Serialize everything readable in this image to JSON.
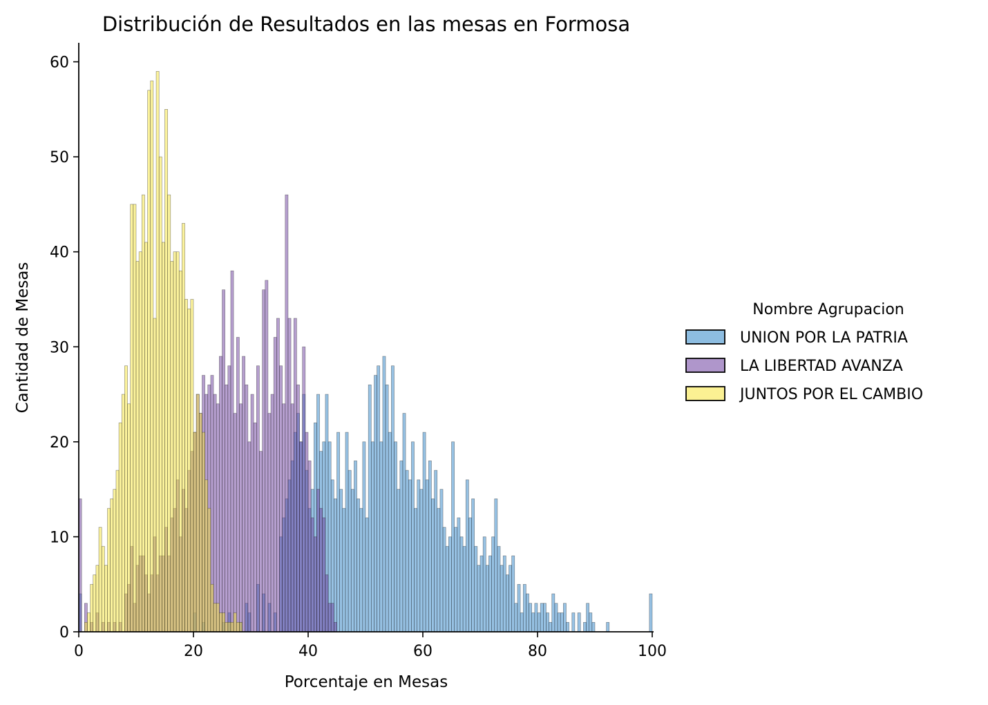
{
  "chart_data": {
    "type": "histogram",
    "title": "Distribución de Resultados en las mesas en Formosa",
    "xlabel": "Porcentaje en Mesas",
    "ylabel": "Cantidad de Mesas",
    "xlim": [
      0,
      100
    ],
    "ylim": [
      0,
      62
    ],
    "xticks": [
      0,
      20,
      40,
      60,
      80,
      100
    ],
    "yticks": [
      0,
      10,
      20,
      30,
      40,
      50,
      60
    ],
    "bin_width": 0.5,
    "grid": false,
    "legend": {
      "title": "Nombre Agrupacion",
      "placement": "right, outside plot",
      "entries": [
        "UNION POR LA PATRIA",
        "LA LIBERTAD AVANZA",
        "JUNTOS POR EL CAMBIO"
      ]
    },
    "colors": {
      "UNION POR LA PATRIA": "#2f86c9",
      "LA LIBERTAD AVANZA": "#6e3fa0",
      "JUNTOS POR EL CAMBIO": "#f7e53a"
    },
    "series": [
      {
        "name": "UNION POR LA PATRIA",
        "points": [
          [
            0.25,
            4
          ],
          [
            20.25,
            2
          ],
          [
            21.75,
            1
          ],
          [
            25.25,
            1
          ],
          [
            26.25,
            2
          ],
          [
            28.25,
            1
          ],
          [
            29.25,
            3
          ],
          [
            29.75,
            2
          ],
          [
            31.25,
            5
          ],
          [
            32.25,
            4
          ],
          [
            33.25,
            3
          ],
          [
            34.25,
            2
          ],
          [
            35.25,
            10
          ],
          [
            35.75,
            12
          ],
          [
            36.25,
            14
          ],
          [
            36.75,
            16
          ],
          [
            37.25,
            18
          ],
          [
            37.75,
            21
          ],
          [
            38.25,
            23
          ],
          [
            38.75,
            20
          ],
          [
            39.25,
            25
          ],
          [
            39.75,
            17
          ],
          [
            40.25,
            13
          ],
          [
            40.75,
            15
          ],
          [
            41.25,
            22
          ],
          [
            41.75,
            25
          ],
          [
            42.25,
            19
          ],
          [
            42.75,
            20
          ],
          [
            43.25,
            25
          ],
          [
            43.75,
            20
          ],
          [
            44.25,
            16
          ],
          [
            44.75,
            14
          ],
          [
            45.25,
            21
          ],
          [
            45.75,
            15
          ],
          [
            46.25,
            13
          ],
          [
            46.75,
            21
          ],
          [
            47.25,
            17
          ],
          [
            47.75,
            15
          ],
          [
            48.25,
            18
          ],
          [
            48.75,
            14
          ],
          [
            49.25,
            13
          ],
          [
            49.75,
            20
          ],
          [
            50.25,
            12
          ],
          [
            50.75,
            26
          ],
          [
            51.25,
            20
          ],
          [
            51.75,
            27
          ],
          [
            52.25,
            28
          ],
          [
            52.75,
            20
          ],
          [
            53.25,
            29
          ],
          [
            53.75,
            26
          ],
          [
            54.25,
            21
          ],
          [
            54.75,
            28
          ],
          [
            55.25,
            20
          ],
          [
            55.75,
            15
          ],
          [
            56.25,
            18
          ],
          [
            56.75,
            23
          ],
          [
            57.25,
            17
          ],
          [
            57.75,
            16
          ],
          [
            58.25,
            20
          ],
          [
            58.75,
            13
          ],
          [
            59.25,
            16
          ],
          [
            59.75,
            15
          ],
          [
            60.25,
            21
          ],
          [
            60.75,
            16
          ],
          [
            61.25,
            18
          ],
          [
            61.75,
            14
          ],
          [
            62.25,
            17
          ],
          [
            62.75,
            13
          ],
          [
            63.25,
            15
          ],
          [
            63.75,
            11
          ],
          [
            64.25,
            9
          ],
          [
            64.75,
            10
          ],
          [
            65.25,
            20
          ],
          [
            65.75,
            11
          ],
          [
            66.25,
            12
          ],
          [
            66.75,
            10
          ],
          [
            67.25,
            9
          ],
          [
            67.75,
            16
          ],
          [
            68.25,
            12
          ],
          [
            68.75,
            14
          ],
          [
            69.25,
            9
          ],
          [
            69.75,
            7
          ],
          [
            70.25,
            8
          ],
          [
            70.75,
            10
          ],
          [
            71.25,
            7
          ],
          [
            71.75,
            8
          ],
          [
            72.25,
            10
          ],
          [
            72.75,
            14
          ],
          [
            73.25,
            9
          ],
          [
            73.75,
            7
          ],
          [
            74.25,
            8
          ],
          [
            74.75,
            6
          ],
          [
            75.25,
            7
          ],
          [
            75.75,
            8
          ],
          [
            76.25,
            3
          ],
          [
            76.75,
            5
          ],
          [
            77.25,
            2
          ],
          [
            77.75,
            5
          ],
          [
            78.25,
            4
          ],
          [
            78.75,
            3
          ],
          [
            79.25,
            2
          ],
          [
            79.75,
            3
          ],
          [
            80.25,
            2
          ],
          [
            80.75,
            3
          ],
          [
            81.25,
            3
          ],
          [
            81.75,
            2
          ],
          [
            82.25,
            1
          ],
          [
            82.75,
            4
          ],
          [
            83.25,
            3
          ],
          [
            83.75,
            2
          ],
          [
            84.25,
            2
          ],
          [
            84.75,
            3
          ],
          [
            85.25,
            1
          ],
          [
            86.25,
            2
          ],
          [
            87.25,
            2
          ],
          [
            88.25,
            1
          ],
          [
            88.75,
            3
          ],
          [
            89.25,
            2
          ],
          [
            89.75,
            1
          ],
          [
            92.25,
            1
          ],
          [
            99.75,
            4
          ]
        ]
      },
      {
        "name": "LA LIBERTAD AVANZA",
        "points": [
          [
            0.25,
            14
          ],
          [
            1.25,
            3
          ],
          [
            2.25,
            1
          ],
          [
            3.25,
            2
          ],
          [
            4.25,
            1
          ],
          [
            5.25,
            1
          ],
          [
            6.25,
            1
          ],
          [
            7.25,
            1
          ],
          [
            8.25,
            4
          ],
          [
            8.75,
            5
          ],
          [
            9.25,
            9
          ],
          [
            9.75,
            3
          ],
          [
            10.25,
            7
          ],
          [
            10.75,
            8
          ],
          [
            11.25,
            8
          ],
          [
            11.75,
            6
          ],
          [
            12.25,
            4
          ],
          [
            12.75,
            6
          ],
          [
            13.25,
            10
          ],
          [
            13.75,
            6
          ],
          [
            14.25,
            8
          ],
          [
            14.75,
            8
          ],
          [
            15.25,
            11
          ],
          [
            15.75,
            8
          ],
          [
            16.25,
            12
          ],
          [
            16.75,
            13
          ],
          [
            17.25,
            16
          ],
          [
            17.75,
            10
          ],
          [
            18.25,
            15
          ],
          [
            18.75,
            13
          ],
          [
            19.25,
            17
          ],
          [
            19.75,
            19
          ],
          [
            20.25,
            21
          ],
          [
            20.75,
            25
          ],
          [
            21.25,
            23
          ],
          [
            21.75,
            27
          ],
          [
            22.25,
            25
          ],
          [
            22.75,
            26
          ],
          [
            23.25,
            27
          ],
          [
            23.75,
            25
          ],
          [
            24.25,
            24
          ],
          [
            24.75,
            29
          ],
          [
            25.25,
            36
          ],
          [
            25.75,
            26
          ],
          [
            26.25,
            28
          ],
          [
            26.75,
            38
          ],
          [
            27.25,
            23
          ],
          [
            27.75,
            31
          ],
          [
            28.25,
            24
          ],
          [
            28.75,
            29
          ],
          [
            29.25,
            26
          ],
          [
            29.75,
            20
          ],
          [
            30.25,
            25
          ],
          [
            30.75,
            22
          ],
          [
            31.25,
            28
          ],
          [
            31.75,
            19
          ],
          [
            32.25,
            36
          ],
          [
            32.75,
            37
          ],
          [
            33.25,
            23
          ],
          [
            33.75,
            25
          ],
          [
            34.25,
            31
          ],
          [
            34.75,
            33
          ],
          [
            35.25,
            28
          ],
          [
            35.75,
            24
          ],
          [
            36.25,
            46
          ],
          [
            36.75,
            33
          ],
          [
            37.25,
            24
          ],
          [
            37.75,
            33
          ],
          [
            38.25,
            26
          ],
          [
            38.75,
            20
          ],
          [
            39.25,
            30
          ],
          [
            39.75,
            21
          ],
          [
            40.25,
            18
          ],
          [
            40.75,
            12
          ],
          [
            41.25,
            10
          ],
          [
            41.75,
            15
          ],
          [
            42.25,
            13
          ],
          [
            42.75,
            12
          ],
          [
            43.25,
            6
          ],
          [
            43.75,
            3
          ],
          [
            44.25,
            3
          ],
          [
            44.75,
            1
          ]
        ]
      },
      {
        "name": "JUNTOS POR EL CAMBIO",
        "points": [
          [
            1.25,
            1
          ],
          [
            1.75,
            2
          ],
          [
            2.25,
            5
          ],
          [
            2.75,
            6
          ],
          [
            3.25,
            7
          ],
          [
            3.75,
            11
          ],
          [
            4.25,
            9
          ],
          [
            4.75,
            7
          ],
          [
            5.25,
            13
          ],
          [
            5.75,
            14
          ],
          [
            6.25,
            15
          ],
          [
            6.75,
            17
          ],
          [
            7.25,
            22
          ],
          [
            7.75,
            25
          ],
          [
            8.25,
            28
          ],
          [
            8.75,
            24
          ],
          [
            9.25,
            45
          ],
          [
            9.75,
            45
          ],
          [
            10.25,
            39
          ],
          [
            10.75,
            40
          ],
          [
            11.25,
            46
          ],
          [
            11.75,
            41
          ],
          [
            12.25,
            57
          ],
          [
            12.75,
            58
          ],
          [
            13.25,
            33
          ],
          [
            13.75,
            59
          ],
          [
            14.25,
            50
          ],
          [
            14.75,
            41
          ],
          [
            15.25,
            55
          ],
          [
            15.75,
            46
          ],
          [
            16.25,
            39
          ],
          [
            16.75,
            40
          ],
          [
            17.25,
            40
          ],
          [
            17.75,
            38
          ],
          [
            18.25,
            43
          ],
          [
            18.75,
            35
          ],
          [
            19.25,
            34
          ],
          [
            19.75,
            35
          ],
          [
            20.25,
            21
          ],
          [
            20.75,
            25
          ],
          [
            21.25,
            23
          ],
          [
            21.75,
            21
          ],
          [
            22.25,
            16
          ],
          [
            22.75,
            13
          ],
          [
            23.25,
            5
          ],
          [
            23.75,
            3
          ],
          [
            24.25,
            3
          ],
          [
            24.75,
            2
          ],
          [
            25.25,
            2
          ],
          [
            25.75,
            1
          ],
          [
            26.25,
            1
          ],
          [
            26.75,
            1
          ],
          [
            27.25,
            2
          ],
          [
            27.75,
            1
          ],
          [
            28.25,
            1
          ]
        ]
      }
    ]
  }
}
